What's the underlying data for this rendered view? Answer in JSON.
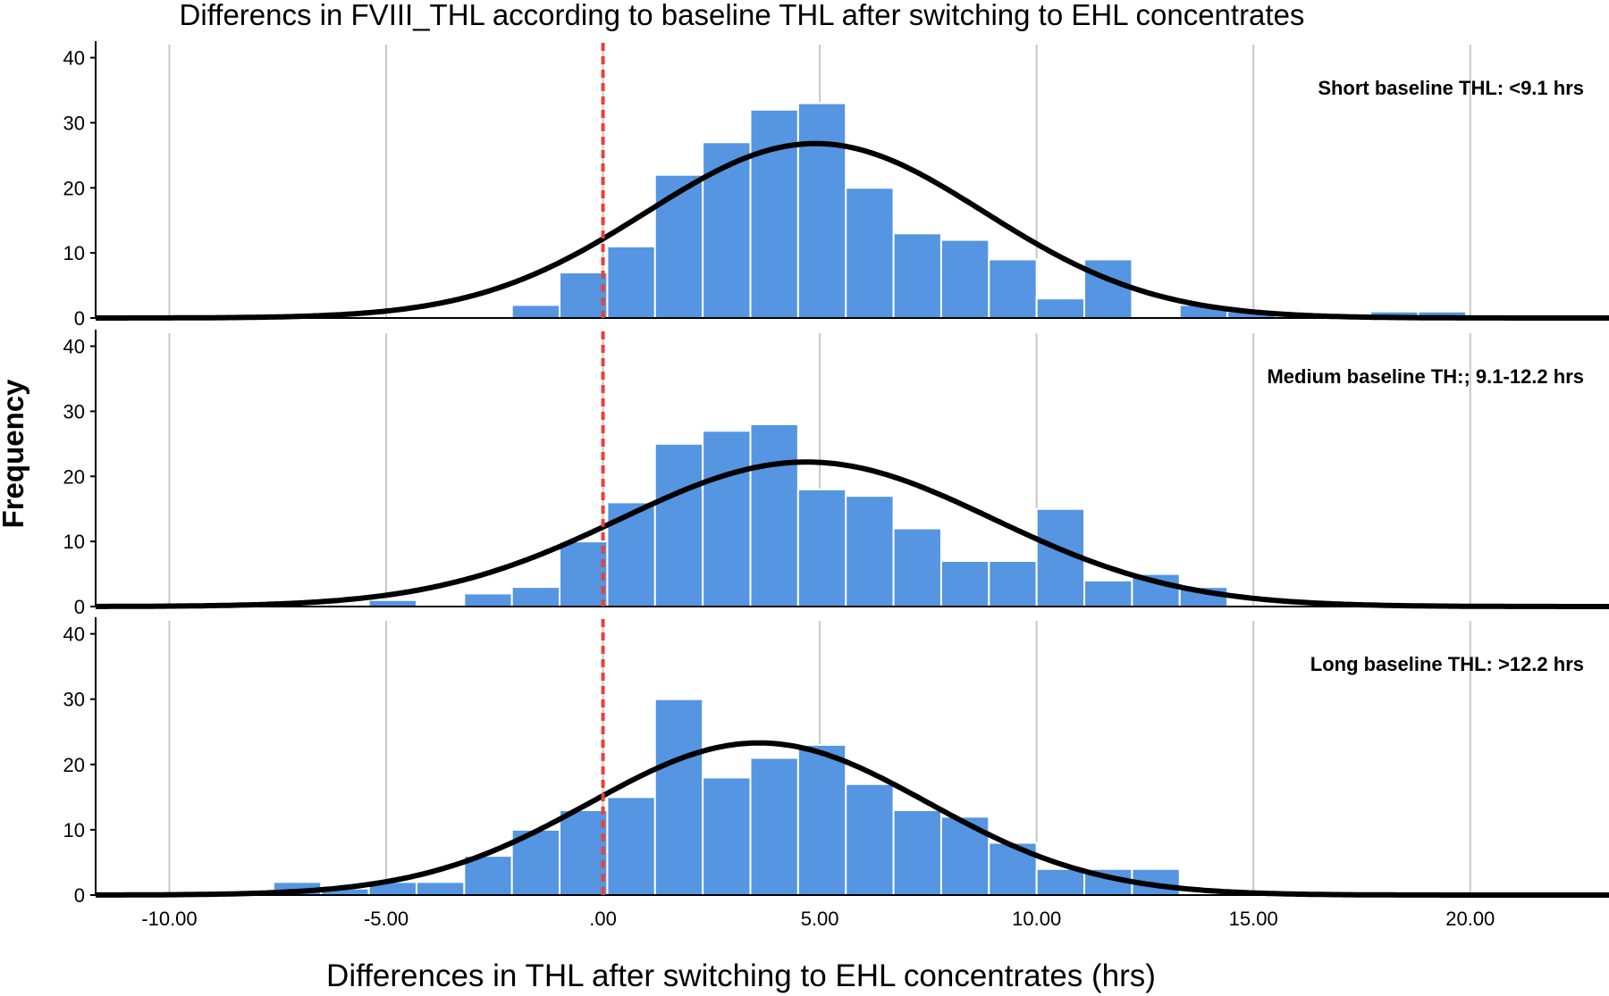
{
  "chart_data": {
    "type": "bar",
    "title": "Differencs in FVIII_THL according to baseline THL after switching to EHL concentrates",
    "xlabel": "Differences in THL after switching to EHL concentrates (hrs)",
    "ylabel": "Frequency",
    "xlim": [
      -11.7,
      23.2
    ],
    "ylim": [
      0,
      42
    ],
    "x_ticks": [
      -10,
      -5,
      0,
      5,
      10,
      15,
      20
    ],
    "x_tick_labels": [
      "-10.00",
      "-5.00",
      ".00",
      "5.00",
      "10.00",
      "15.00",
      "20.00"
    ],
    "y_ticks": [
      0,
      10,
      20,
      30,
      40
    ],
    "y_tick_labels": [
      "0",
      "10",
      "20",
      "30",
      "40"
    ],
    "bin_width": 1.1,
    "reference_line_x": 0,
    "grid": "vertical",
    "bar_color": "#5595e1",
    "curve_color": "#000000",
    "reference_line_color": "#e8413b",
    "panels": [
      {
        "label": "Short baseline THL: <9.1 hrs",
        "bins": [
          {
            "x0": -2.1,
            "x1": -1.0,
            "count": 2
          },
          {
            "x0": -1.0,
            "x1": 0.1,
            "count": 7
          },
          {
            "x0": 0.1,
            "x1": 1.2,
            "count": 11
          },
          {
            "x0": 1.2,
            "x1": 2.3,
            "count": 22
          },
          {
            "x0": 2.3,
            "x1": 3.4,
            "count": 27
          },
          {
            "x0": 3.4,
            "x1": 4.5,
            "count": 32
          },
          {
            "x0": 4.5,
            "x1": 5.6,
            "count": 33
          },
          {
            "x0": 5.6,
            "x1": 6.7,
            "count": 20
          },
          {
            "x0": 6.7,
            "x1": 7.8,
            "count": 13
          },
          {
            "x0": 7.8,
            "x1": 8.9,
            "count": 12
          },
          {
            "x0": 8.9,
            "x1": 10.0,
            "count": 9
          },
          {
            "x0": 10.0,
            "x1": 11.1,
            "count": 3
          },
          {
            "x0": 11.1,
            "x1": 12.2,
            "count": 9
          },
          {
            "x0": 13.3,
            "x1": 14.4,
            "count": 2
          },
          {
            "x0": 14.4,
            "x1": 15.5,
            "count": 1
          },
          {
            "x0": 17.7,
            "x1": 18.8,
            "count": 1
          },
          {
            "x0": 18.8,
            "x1": 19.9,
            "count": 1
          }
        ],
        "normal_curve": {
          "mean": 4.9,
          "sd": 3.9,
          "peak": 26.8
        }
      },
      {
        "label": "Medium baseline TH:; 9.1-12.2 hrs",
        "bins": [
          {
            "x0": -5.4,
            "x1": -4.3,
            "count": 1
          },
          {
            "x0": -3.2,
            "x1": -2.1,
            "count": 2
          },
          {
            "x0": -2.1,
            "x1": -1.0,
            "count": 3
          },
          {
            "x0": -1.0,
            "x1": 0.1,
            "count": 10
          },
          {
            "x0": 0.1,
            "x1": 1.2,
            "count": 16
          },
          {
            "x0": 1.2,
            "x1": 2.3,
            "count": 25
          },
          {
            "x0": 2.3,
            "x1": 3.4,
            "count": 27
          },
          {
            "x0": 3.4,
            "x1": 4.5,
            "count": 28
          },
          {
            "x0": 4.5,
            "x1": 5.6,
            "count": 18
          },
          {
            "x0": 5.6,
            "x1": 6.7,
            "count": 17
          },
          {
            "x0": 6.7,
            "x1": 7.8,
            "count": 12
          },
          {
            "x0": 7.8,
            "x1": 8.9,
            "count": 7
          },
          {
            "x0": 8.9,
            "x1": 10.0,
            "count": 7
          },
          {
            "x0": 10.0,
            "x1": 11.1,
            "count": 15
          },
          {
            "x0": 11.1,
            "x1": 12.2,
            "count": 4
          },
          {
            "x0": 12.2,
            "x1": 13.3,
            "count": 5
          },
          {
            "x0": 13.3,
            "x1": 14.4,
            "count": 3
          }
        ],
        "normal_curve": {
          "mean": 4.7,
          "sd": 4.3,
          "peak": 22.2
        }
      },
      {
        "label": "Long baseline THL: >12.2 hrs",
        "bins": [
          {
            "x0": -7.6,
            "x1": -6.5,
            "count": 2
          },
          {
            "x0": -6.5,
            "x1": -5.4,
            "count": 1
          },
          {
            "x0": -5.4,
            "x1": -4.3,
            "count": 2
          },
          {
            "x0": -4.3,
            "x1": -3.2,
            "count": 2
          },
          {
            "x0": -3.2,
            "x1": -2.1,
            "count": 6
          },
          {
            "x0": -2.1,
            "x1": -1.0,
            "count": 10
          },
          {
            "x0": -1.0,
            "x1": 0.1,
            "count": 13
          },
          {
            "x0": 0.1,
            "x1": 1.2,
            "count": 15
          },
          {
            "x0": 1.2,
            "x1": 2.3,
            "count": 30
          },
          {
            "x0": 2.3,
            "x1": 3.4,
            "count": 18
          },
          {
            "x0": 3.4,
            "x1": 4.5,
            "count": 21
          },
          {
            "x0": 4.5,
            "x1": 5.6,
            "count": 23
          },
          {
            "x0": 5.6,
            "x1": 6.7,
            "count": 17
          },
          {
            "x0": 6.7,
            "x1": 7.8,
            "count": 13
          },
          {
            "x0": 7.8,
            "x1": 8.9,
            "count": 12
          },
          {
            "x0": 8.9,
            "x1": 10.0,
            "count": 8
          },
          {
            "x0": 10.0,
            "x1": 11.1,
            "count": 4
          },
          {
            "x0": 11.1,
            "x1": 12.2,
            "count": 4
          },
          {
            "x0": 12.2,
            "x1": 13.3,
            "count": 4
          }
        ],
        "normal_curve": {
          "mean": 3.6,
          "sd": 3.9,
          "peak": 23.3
        }
      }
    ]
  }
}
